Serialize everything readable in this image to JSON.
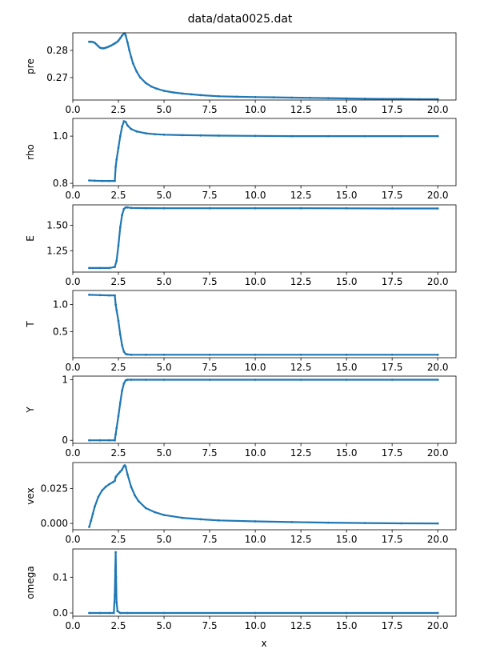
{
  "figure": {
    "title": "data/data0025.dat",
    "xlabel": "x"
  },
  "colors": {
    "series": "#1f77b4",
    "axes": "#000000",
    "background": "#ffffff"
  },
  "chart_data": [
    {
      "type": "scatter",
      "ylabel": "pre",
      "xlim": [
        0.0,
        21.0
      ],
      "ylim": [
        0.2617,
        0.2865
      ],
      "xticks": [
        0,
        2.5,
        5,
        7.5,
        10,
        12.5,
        15,
        17.5,
        20
      ],
      "xtick_labels": [
        "0.0",
        "2.5",
        "5.0",
        "7.5",
        "10.0",
        "12.5",
        "15.0",
        "17.5",
        "20.0"
      ],
      "yticks": [
        0.27,
        0.28
      ],
      "ytick_labels": [
        "0.27",
        "0.28"
      ],
      "grid": false,
      "series": [
        {
          "x": [
            0.9,
            1.0,
            1.1,
            1.2,
            1.3,
            1.4,
            1.5,
            1.6,
            1.7,
            1.8,
            1.9,
            2.0,
            2.1,
            2.2,
            2.3,
            2.4,
            2.5,
            2.6,
            2.7,
            2.8,
            2.85,
            2.9,
            3.0,
            3.1,
            3.2,
            3.3,
            3.5,
            3.7,
            4.0,
            4.3,
            4.6,
            5.0,
            5.5,
            6.0,
            6.5,
            7.0,
            8.0,
            9.0,
            10.0,
            11.0,
            12.0,
            13.0,
            14.0,
            15.0,
            16.0,
            17.0,
            18.0,
            19.0,
            20.0
          ],
          "y": [
            0.2832,
            0.2832,
            0.2831,
            0.2828,
            0.2822,
            0.2815,
            0.281,
            0.2808,
            0.2808,
            0.281,
            0.2812,
            0.2815,
            0.2818,
            0.2822,
            0.2826,
            0.283,
            0.2836,
            0.2845,
            0.2855,
            0.2862,
            0.2863,
            0.2855,
            0.283,
            0.28,
            0.2775,
            0.2752,
            0.2722,
            0.27,
            0.268,
            0.2667,
            0.2659,
            0.2651,
            0.2645,
            0.2641,
            0.2638,
            0.2635,
            0.2631,
            0.2629,
            0.2628,
            0.2627,
            0.2626,
            0.2625,
            0.2624,
            0.2623,
            0.2622,
            0.2621,
            0.2621,
            0.262,
            0.262
          ]
        }
      ]
    },
    {
      "type": "scatter",
      "ylabel": "rho",
      "xlim": [
        0.0,
        21.0
      ],
      "ylim": [
        0.79,
        1.075
      ],
      "xticks": [
        0,
        2.5,
        5,
        7.5,
        10,
        12.5,
        15,
        17.5,
        20
      ],
      "xtick_labels": [
        "0.0",
        "2.5",
        "5.0",
        "7.5",
        "10.0",
        "12.5",
        "15.0",
        "17.5",
        "20.0"
      ],
      "yticks": [
        0.8,
        1.0
      ],
      "ytick_labels": [
        "0.8",
        "1.0"
      ],
      "grid": false,
      "series": [
        {
          "x": [
            0.9,
            1.2,
            1.6,
            2.0,
            2.3,
            2.35,
            2.4,
            2.5,
            2.6,
            2.7,
            2.8,
            2.9,
            3.0,
            3.2,
            3.5,
            4.0,
            4.5,
            5.0,
            6.0,
            7.0,
            8.0,
            10.0,
            12.0,
            14.0,
            16.0,
            18.0,
            20.0
          ],
          "y": [
            0.812,
            0.811,
            0.81,
            0.81,
            0.81,
            0.87,
            0.9,
            0.95,
            1.0,
            1.04,
            1.063,
            1.06,
            1.045,
            1.03,
            1.02,
            1.012,
            1.008,
            1.006,
            1.004,
            1.003,
            1.002,
            1.001,
            1.0,
            1.0,
            1.0,
            1.0,
            1.0
          ]
        }
      ]
    },
    {
      "type": "scatter",
      "ylabel": "E",
      "xlim": [
        0.0,
        21.0
      ],
      "ylim": [
        1.04,
        1.7
      ],
      "xticks": [
        0,
        2.5,
        5,
        7.5,
        10,
        12.5,
        15,
        17.5,
        20
      ],
      "xtick_labels": [
        "0.0",
        "2.5",
        "5.0",
        "7.5",
        "10.0",
        "12.5",
        "15.0",
        "17.5",
        "20.0"
      ],
      "yticks": [
        1.25,
        1.5
      ],
      "ytick_labels": [
        "1.25",
        "1.50"
      ],
      "grid": false,
      "series": [
        {
          "x": [
            0.9,
            1.5,
            2.0,
            2.3,
            2.4,
            2.5,
            2.6,
            2.7,
            2.8,
            2.9,
            3.0,
            3.2,
            4.0,
            5.0,
            7.5,
            10.0,
            12.5,
            15.0,
            17.5,
            20.0
          ],
          "y": [
            1.08,
            1.08,
            1.08,
            1.09,
            1.15,
            1.3,
            1.48,
            1.6,
            1.66,
            1.675,
            1.675,
            1.67,
            1.668,
            1.667,
            1.667,
            1.667,
            1.667,
            1.666,
            1.665,
            1.665
          ]
        }
      ]
    },
    {
      "type": "scatter",
      "ylabel": "T",
      "xlim": [
        0.0,
        21.0
      ],
      "ylim": [
        0.02,
        1.26
      ],
      "xticks": [
        0,
        2.5,
        5,
        7.5,
        10,
        12.5,
        15,
        17.5,
        20
      ],
      "xtick_labels": [
        "0.0",
        "2.5",
        "5.0",
        "7.5",
        "10.0",
        "12.5",
        "15.0",
        "17.5",
        "20.0"
      ],
      "yticks": [
        0.5,
        1.0
      ],
      "ytick_labels": [
        "0.5",
        "1.0"
      ],
      "grid": false,
      "series": [
        {
          "x": [
            0.9,
            1.5,
            2.0,
            2.3,
            2.35,
            2.4,
            2.5,
            2.6,
            2.7,
            2.8,
            2.9,
            3.0,
            3.2,
            4.0,
            5.0,
            7.5,
            10.0,
            12.5,
            15.0,
            17.5,
            20.0
          ],
          "y": [
            1.18,
            1.175,
            1.17,
            1.17,
            1.0,
            0.9,
            0.7,
            0.45,
            0.25,
            0.13,
            0.09,
            0.08,
            0.075,
            0.075,
            0.075,
            0.075,
            0.075,
            0.075,
            0.075,
            0.075,
            0.075
          ]
        }
      ]
    },
    {
      "type": "scatter",
      "ylabel": "Y",
      "xlim": [
        0.0,
        21.0
      ],
      "ylim": [
        -0.05,
        1.06
      ],
      "xticks": [
        0,
        2.5,
        5,
        7.5,
        10,
        12.5,
        15,
        17.5,
        20
      ],
      "xtick_labels": [
        "0.0",
        "2.5",
        "5.0",
        "7.5",
        "10.0",
        "12.5",
        "15.0",
        "17.5",
        "20.0"
      ],
      "yticks": [
        0,
        1
      ],
      "ytick_labels": [
        "0",
        "1"
      ],
      "grid": false,
      "series": [
        {
          "x": [
            0.9,
            1.5,
            2.0,
            2.3,
            2.35,
            2.4,
            2.5,
            2.6,
            2.7,
            2.8,
            2.9,
            3.0,
            3.2,
            4.0,
            5.0,
            7.5,
            10.0,
            12.5,
            15.0,
            17.5,
            20.0
          ],
          "y": [
            0.0,
            0.0,
            0.0,
            0.0,
            0.1,
            0.2,
            0.4,
            0.62,
            0.82,
            0.94,
            0.99,
            1.0,
            1.0,
            1.0,
            1.0,
            1.0,
            1.0,
            1.0,
            1.0,
            1.0,
            1.0
          ]
        }
      ]
    },
    {
      "type": "scatter",
      "ylabel": "vex",
      "xlim": [
        0.0,
        21.0
      ],
      "ylim": [
        -0.0045,
        0.0435
      ],
      "xticks": [
        0,
        2.5,
        5,
        7.5,
        10,
        12.5,
        15,
        17.5,
        20
      ],
      "xtick_labels": [
        "0.0",
        "2.5",
        "5.0",
        "7.5",
        "10.0",
        "12.5",
        "15.0",
        "17.5",
        "20.0"
      ],
      "yticks": [
        0.0,
        0.025
      ],
      "ytick_labels": [
        "0.000",
        "0.025"
      ],
      "grid": false,
      "series": [
        {
          "x": [
            0.9,
            1.0,
            1.1,
            1.2,
            1.4,
            1.6,
            1.8,
            2.0,
            2.2,
            2.3,
            2.35,
            2.4,
            2.5,
            2.6,
            2.7,
            2.8,
            2.85,
            2.9,
            3.0,
            3.2,
            3.4,
            3.6,
            4.0,
            4.5,
            5.0,
            6.0,
            7.0,
            8.0,
            10.0,
            12.0,
            14.0,
            16.0,
            18.0,
            20.0
          ],
          "y": [
            -0.0025,
            0.002,
            0.007,
            0.012,
            0.019,
            0.0235,
            0.0262,
            0.028,
            0.0295,
            0.0305,
            0.033,
            0.034,
            0.0355,
            0.037,
            0.0385,
            0.041,
            0.0415,
            0.0405,
            0.035,
            0.026,
            0.02,
            0.016,
            0.011,
            0.008,
            0.006,
            0.004,
            0.003,
            0.0022,
            0.0015,
            0.001,
            0.0006,
            0.0003,
            0.0001,
            0.0
          ]
        }
      ]
    },
    {
      "type": "scatter",
      "ylabel": "omega",
      "xlim": [
        0.0,
        21.0
      ],
      "ylim": [
        -0.009,
        0.179
      ],
      "xticks": [
        0,
        2.5,
        5,
        7.5,
        10,
        12.5,
        15,
        17.5,
        20
      ],
      "xtick_labels": [
        "0.0",
        "2.5",
        "5.0",
        "7.5",
        "10.0",
        "12.5",
        "15.0",
        "17.5",
        "20.0"
      ],
      "yticks": [
        0.0,
        0.1
      ],
      "ytick_labels": [
        "0.0",
        "0.1"
      ],
      "grid": false,
      "series": [
        {
          "x": [
            0.9,
            1.5,
            2.0,
            2.25,
            2.3,
            2.33,
            2.35,
            2.37,
            2.4,
            2.45,
            2.6,
            3.0,
            5.0,
            10.0,
            15.0,
            20.0
          ],
          "y": [
            0.0,
            0.0,
            0.0,
            0.0,
            0.05,
            0.12,
            0.17,
            0.1,
            0.03,
            0.005,
            0.0,
            0.0,
            0.0,
            0.0,
            0.0,
            0.0
          ]
        }
      ]
    }
  ]
}
